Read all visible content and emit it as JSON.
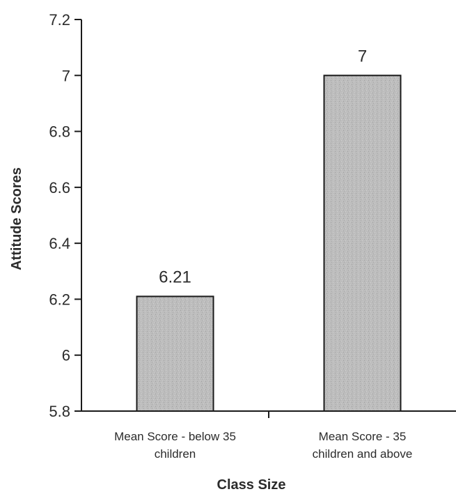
{
  "chart_data": {
    "type": "bar",
    "categories": [
      [
        "Mean Score - below 35",
        "children"
      ],
      [
        "Mean Score -  35",
        "children and above"
      ]
    ],
    "values": [
      6.21,
      7
    ],
    "data_labels": [
      "6.21",
      "7"
    ],
    "xlabel": "Class Size",
    "ylabel": "Attitude Scores",
    "ylim": [
      5.8,
      7.2
    ],
    "yticks": [
      5.8,
      6,
      6.2,
      6.4,
      6.6,
      6.8,
      7,
      7.2
    ],
    "ytick_labels": [
      "5.8",
      "6",
      "6.2",
      "6.4",
      "6.6",
      "6.8",
      "7",
      "7.2"
    ],
    "grid": false,
    "legend": "none",
    "colors": {
      "bar_fill": "#bcbcbc",
      "bar_stroke": "#1a1a1a",
      "axis": "#1a1a1a",
      "text": "#2b2b2b"
    }
  }
}
